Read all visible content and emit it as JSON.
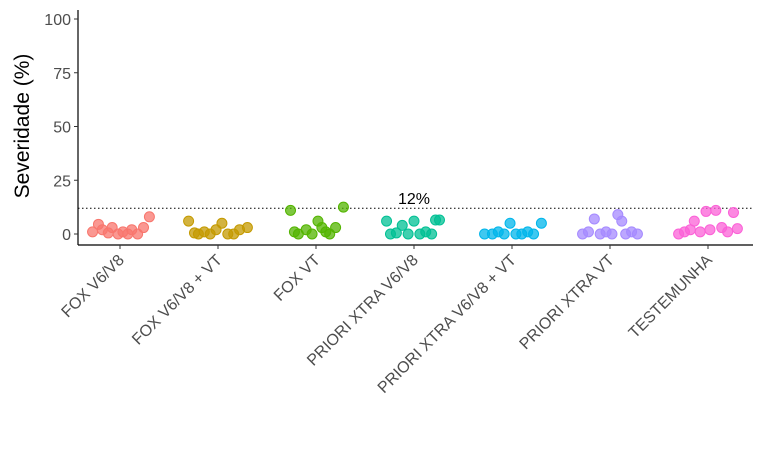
{
  "chart_data": {
    "type": "scatter",
    "ylabel": "Severidade (%)",
    "xlabel": "",
    "ylim": [
      0,
      100
    ],
    "yticks": [
      0,
      25,
      50,
      75,
      100
    ],
    "grid": false,
    "legend": "none",
    "reference_line": {
      "y": 12,
      "style": "dotted",
      "label": "12%"
    },
    "categories": [
      "FOX V6/V8",
      "FOX V6/V8 + VT",
      "FOX VT",
      "PRIORI XTRA V6/V8",
      "PRIORI XTRA V6/V8 + VT",
      "PRIORI XTRA VT",
      "TESTEMUNHA"
    ],
    "series": [
      {
        "category": "FOX V6/V8",
        "color": "#F8766D",
        "points": [
          [
            -0.28,
            1
          ],
          [
            -0.22,
            4.5
          ],
          [
            -0.18,
            2
          ],
          [
            -0.12,
            0.5
          ],
          [
            -0.08,
            3
          ],
          [
            -0.02,
            0
          ],
          [
            0.03,
            1
          ],
          [
            0.08,
            0
          ],
          [
            0.12,
            2
          ],
          [
            0.18,
            0
          ],
          [
            0.24,
            3
          ],
          [
            0.3,
            8
          ]
        ]
      },
      {
        "category": "FOX V6/V8 + VT",
        "color": "#C49A00",
        "points": [
          [
            -0.3,
            6
          ],
          [
            -0.24,
            0.5
          ],
          [
            -0.2,
            0
          ],
          [
            -0.14,
            1
          ],
          [
            -0.08,
            0
          ],
          [
            -0.02,
            2
          ],
          [
            0.04,
            5
          ],
          [
            0.1,
            0
          ],
          [
            0.16,
            0
          ],
          [
            0.22,
            2
          ],
          [
            0.3,
            3
          ]
        ]
      },
      {
        "category": "FOX VT",
        "color": "#53B400",
        "points": [
          [
            -0.26,
            11
          ],
          [
            -0.22,
            1
          ],
          [
            -0.18,
            0
          ],
          [
            -0.1,
            2
          ],
          [
            -0.04,
            0
          ],
          [
            0.02,
            6
          ],
          [
            0.06,
            3
          ],
          [
            0.1,
            1
          ],
          [
            0.14,
            0
          ],
          [
            0.2,
            3
          ],
          [
            0.28,
            12.5
          ]
        ]
      },
      {
        "category": "PRIORI XTRA V6/V8",
        "color": "#00C094",
        "points": [
          [
            -0.28,
            6
          ],
          [
            -0.24,
            0
          ],
          [
            -0.18,
            0.5
          ],
          [
            -0.12,
            4
          ],
          [
            -0.06,
            0
          ],
          [
            0.0,
            6
          ],
          [
            0.06,
            0
          ],
          [
            0.12,
            1
          ],
          [
            0.18,
            0
          ],
          [
            0.22,
            6.5
          ],
          [
            0.26,
            6.5
          ]
        ]
      },
      {
        "category": "PRIORI XTRA V6/V8 + VT",
        "color": "#00B6EB",
        "points": [
          [
            -0.28,
            0
          ],
          [
            -0.2,
            0
          ],
          [
            -0.14,
            1
          ],
          [
            -0.08,
            0
          ],
          [
            -0.02,
            5
          ],
          [
            0.04,
            0
          ],
          [
            0.1,
            0
          ],
          [
            0.16,
            1
          ],
          [
            0.22,
            0
          ],
          [
            0.3,
            5
          ]
        ]
      },
      {
        "category": "PRIORI XTRA VT",
        "color": "#A58AFF",
        "points": [
          [
            -0.28,
            0
          ],
          [
            -0.22,
            1
          ],
          [
            -0.16,
            7
          ],
          [
            -0.1,
            0
          ],
          [
            -0.04,
            1
          ],
          [
            0.02,
            0
          ],
          [
            0.08,
            9
          ],
          [
            0.12,
            6
          ],
          [
            0.16,
            0
          ],
          [
            0.22,
            1
          ],
          [
            0.28,
            0
          ]
        ]
      },
      {
        "category": "TESTEMUNHA",
        "color": "#FB61D7",
        "points": [
          [
            -0.3,
            0
          ],
          [
            -0.24,
            1
          ],
          [
            -0.18,
            2
          ],
          [
            -0.14,
            6
          ],
          [
            -0.08,
            1
          ],
          [
            -0.02,
            10.5
          ],
          [
            0.02,
            2
          ],
          [
            0.08,
            11
          ],
          [
            0.14,
            3
          ],
          [
            0.2,
            1
          ],
          [
            0.26,
            10
          ],
          [
            0.3,
            2.5
          ]
        ]
      }
    ]
  }
}
